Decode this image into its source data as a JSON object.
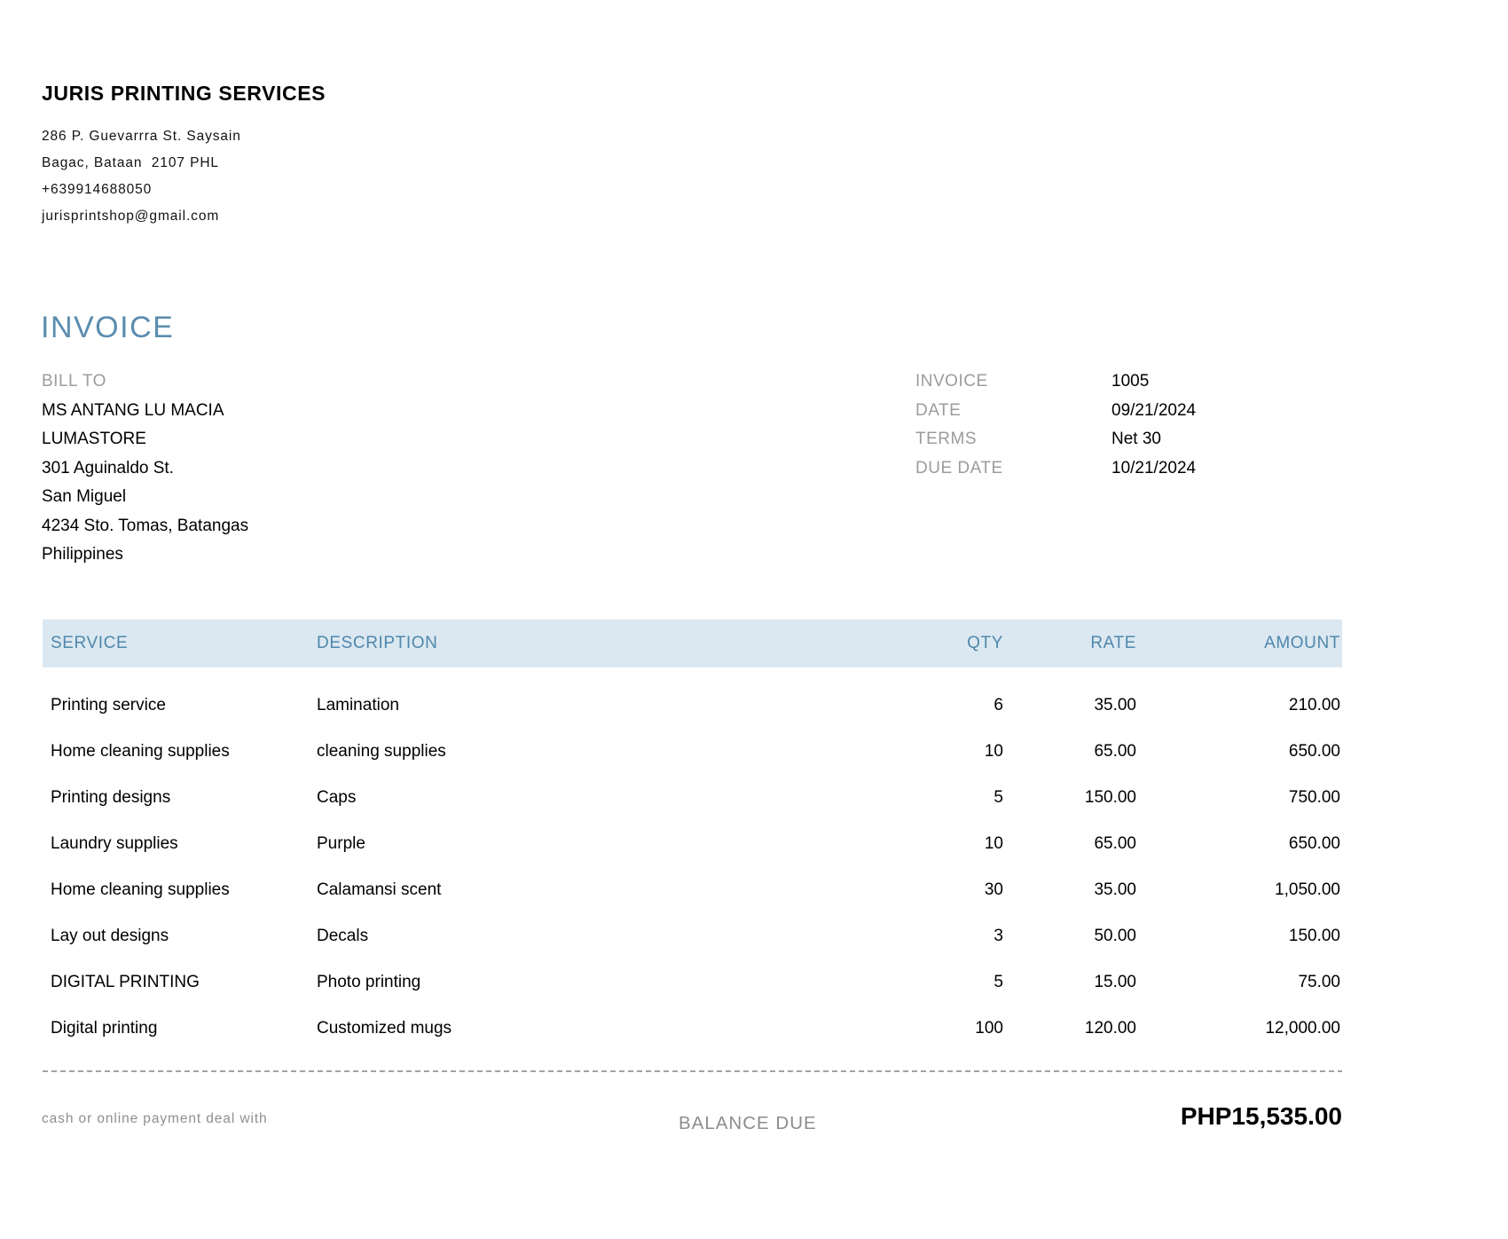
{
  "company": {
    "name": "JURIS PRINTING SERVICES",
    "address_lines": [
      "286 P. Guevarrra St. Saysain",
      "Bagac, Bataan  2107 PHL",
      "+639914688050",
      "jurisprintshop@gmail.com"
    ]
  },
  "invoice": {
    "title": "INVOICE",
    "bill_to_label": "BILL TO",
    "bill_to_lines": [
      "MS ANTANG LU MACIA",
      "LUMASTORE",
      "301 Aguinaldo St.",
      "San Miguel",
      "4234 Sto. Tomas, Batangas",
      "Philippines"
    ],
    "meta": [
      {
        "label": "INVOICE",
        "value": "1005"
      },
      {
        "label": "DATE",
        "value": "09/21/2024"
      },
      {
        "label": "TERMS",
        "value": "Net 30"
      },
      {
        "label": "DUE DATE",
        "value": "10/21/2024"
      }
    ]
  },
  "table": {
    "headers": {
      "service": "SERVICE",
      "description": "DESCRIPTION",
      "qty": "QTY",
      "rate": "RATE",
      "amount": "AMOUNT"
    },
    "rows": [
      {
        "service": "Printing service",
        "description": "Lamination",
        "qty": "6",
        "rate": "35.00",
        "amount": "210.00"
      },
      {
        "service": "Home cleaning supplies",
        "description": "cleaning supplies",
        "qty": "10",
        "rate": "65.00",
        "amount": "650.00"
      },
      {
        "service": "Printing designs",
        "description": "Caps",
        "qty": "5",
        "rate": "150.00",
        "amount": "750.00"
      },
      {
        "service": "Laundry supplies",
        "description": "Purple",
        "qty": "10",
        "rate": "65.00",
        "amount": "650.00"
      },
      {
        "service": "Home cleaning supplies",
        "description": "Calamansi scent",
        "qty": "30",
        "rate": "35.00",
        "amount": "1,050.00"
      },
      {
        "service": "Lay out designs",
        "description": "Decals",
        "qty": "3",
        "rate": "50.00",
        "amount": "150.00"
      },
      {
        "service": "DIGITAL PRINTING",
        "description": "Photo printing",
        "qty": "5",
        "rate": "15.00",
        "amount": "75.00"
      },
      {
        "service": "Digital printing",
        "description": "Customized mugs",
        "qty": "100",
        "rate": "120.00",
        "amount": "12,000.00"
      }
    ]
  },
  "footer": {
    "note": "cash or online payment deal with",
    "balance_due_label": "BALANCE DUE",
    "balance_due_amount": "PHP15,535.00"
  },
  "colors": {
    "accent_blue": "#5b8dae",
    "table_header_bg": "#dbe8f1",
    "table_header_text": "#4e87ac",
    "muted_gray": "#9c9c9c"
  }
}
